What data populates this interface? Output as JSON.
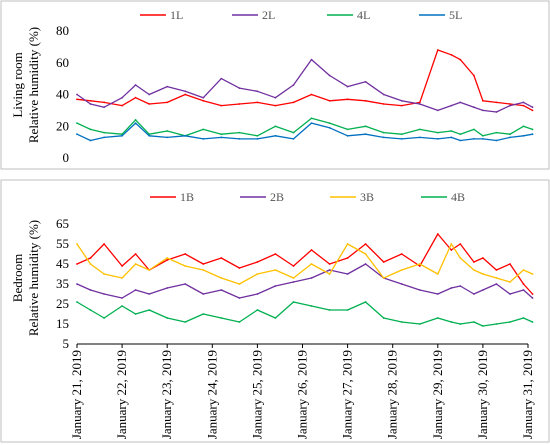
{
  "chart_data": [
    {
      "type": "line",
      "ylabel_line1": "Living room",
      "ylabel_line2": "Relative humidity (%)",
      "ylim": [
        0,
        80
      ],
      "yticks": [
        "0",
        "20",
        "40",
        "60",
        "80"
      ],
      "grid": false,
      "legend_position": "top",
      "x_range_days": [
        21,
        31
      ],
      "series": [
        {
          "name": "1L",
          "color": "#ff0000",
          "x": [
            21.0,
            21.3,
            21.6,
            22.0,
            22.3,
            22.6,
            23.0,
            23.4,
            23.8,
            24.2,
            24.6,
            25.0,
            25.4,
            25.8,
            26.2,
            26.6,
            27.0,
            27.4,
            27.8,
            28.2,
            28.6,
            29.0,
            29.3,
            29.5,
            29.8,
            30.0,
            30.3,
            30.6,
            30.9,
            31.1
          ],
          "y": [
            37,
            36,
            35,
            33,
            38,
            34,
            35,
            40,
            36,
            33,
            34,
            35,
            33,
            35,
            40,
            36,
            37,
            36,
            34,
            33,
            35,
            68,
            65,
            62,
            52,
            36,
            35,
            34,
            33,
            30
          ]
        },
        {
          "name": "2L",
          "color": "#7030a0",
          "x": [
            21.0,
            21.3,
            21.6,
            22.0,
            22.3,
            22.6,
            23.0,
            23.4,
            23.8,
            24.2,
            24.6,
            25.0,
            25.4,
            25.8,
            26.2,
            26.6,
            27.0,
            27.4,
            27.8,
            28.2,
            28.6,
            29.0,
            29.3,
            29.5,
            29.8,
            30.0,
            30.3,
            30.6,
            30.9,
            31.1
          ],
          "y": [
            40,
            34,
            32,
            38,
            46,
            40,
            45,
            42,
            38,
            50,
            44,
            42,
            38,
            46,
            62,
            52,
            45,
            48,
            40,
            36,
            34,
            30,
            33,
            35,
            32,
            30,
            29,
            33,
            35,
            32
          ]
        },
        {
          "name": "4L",
          "color": "#00b050",
          "x": [
            21.0,
            21.3,
            21.6,
            22.0,
            22.3,
            22.6,
            23.0,
            23.4,
            23.8,
            24.2,
            24.6,
            25.0,
            25.4,
            25.8,
            26.2,
            26.6,
            27.0,
            27.4,
            27.8,
            28.2,
            28.6,
            29.0,
            29.3,
            29.5,
            29.8,
            30.0,
            30.3,
            30.6,
            30.9,
            31.1
          ],
          "y": [
            22,
            18,
            16,
            15,
            24,
            15,
            17,
            14,
            18,
            15,
            16,
            14,
            20,
            16,
            25,
            22,
            18,
            20,
            16,
            15,
            18,
            16,
            17,
            15,
            18,
            14,
            16,
            15,
            20,
            18
          ]
        },
        {
          "name": "5L",
          "color": "#0070c0",
          "x": [
            21.0,
            21.3,
            21.6,
            22.0,
            22.3,
            22.6,
            23.0,
            23.4,
            23.8,
            24.2,
            24.6,
            25.0,
            25.4,
            25.8,
            26.2,
            26.6,
            27.0,
            27.4,
            27.8,
            28.2,
            28.6,
            29.0,
            29.3,
            29.5,
            29.8,
            30.0,
            30.3,
            30.6,
            30.9,
            31.1
          ],
          "y": [
            15,
            11,
            13,
            14,
            22,
            14,
            13,
            14,
            12,
            13,
            12,
            12,
            14,
            12,
            22,
            19,
            14,
            15,
            13,
            12,
            13,
            12,
            13,
            11,
            12,
            12,
            11,
            13,
            14,
            15
          ]
        }
      ]
    },
    {
      "type": "line",
      "ylabel_line1": "Bedroom",
      "ylabel_line2": "Relative humidity (%)",
      "ylim": [
        5,
        70
      ],
      "yticks": [
        "5",
        "15",
        "25",
        "35",
        "45",
        "55",
        "65"
      ],
      "grid": false,
      "legend_position": "top",
      "x_range_days": [
        21,
        31
      ],
      "series": [
        {
          "name": "1B",
          "color": "#ff0000",
          "x": [
            21.0,
            21.3,
            21.6,
            22.0,
            22.3,
            22.6,
            23.0,
            23.4,
            23.8,
            24.2,
            24.6,
            25.0,
            25.4,
            25.8,
            26.2,
            26.6,
            27.0,
            27.4,
            27.8,
            28.2,
            28.6,
            29.0,
            29.3,
            29.5,
            29.8,
            30.0,
            30.3,
            30.6,
            30.9,
            31.1
          ],
          "y": [
            45,
            48,
            55,
            44,
            50,
            42,
            47,
            50,
            45,
            48,
            43,
            46,
            50,
            44,
            52,
            45,
            48,
            55,
            46,
            50,
            44,
            60,
            52,
            55,
            46,
            48,
            42,
            45,
            35,
            30
          ]
        },
        {
          "name": "2B",
          "color": "#7030a0",
          "x": [
            21.0,
            21.3,
            21.6,
            22.0,
            22.3,
            22.6,
            23.0,
            23.4,
            23.8,
            24.2,
            24.6,
            25.0,
            25.4,
            25.8,
            26.2,
            26.6,
            27.0,
            27.4,
            27.8,
            28.2,
            28.6,
            29.0,
            29.3,
            29.5,
            29.8,
            30.0,
            30.3,
            30.6,
            30.9,
            31.1
          ],
          "y": [
            35,
            32,
            30,
            28,
            32,
            30,
            33,
            35,
            30,
            32,
            28,
            30,
            34,
            36,
            38,
            42,
            40,
            45,
            38,
            35,
            32,
            30,
            33,
            34,
            30,
            32,
            35,
            30,
            32,
            28
          ]
        },
        {
          "name": "3B",
          "color": "#ffc000",
          "x": [
            21.0,
            21.3,
            21.6,
            22.0,
            22.3,
            22.6,
            23.0,
            23.4,
            23.8,
            24.2,
            24.6,
            25.0,
            25.4,
            25.8,
            26.2,
            26.6,
            27.0,
            27.4,
            27.8,
            28.2,
            28.6,
            29.0,
            29.3,
            29.5,
            29.8,
            30.0,
            30.3,
            30.6,
            30.9,
            31.1
          ],
          "y": [
            55,
            45,
            40,
            38,
            45,
            42,
            48,
            44,
            42,
            38,
            35,
            40,
            42,
            38,
            45,
            40,
            55,
            50,
            38,
            42,
            45,
            40,
            55,
            48,
            42,
            40,
            38,
            36,
            42,
            40
          ]
        },
        {
          "name": "4B",
          "color": "#00b050",
          "x": [
            21.0,
            21.3,
            21.6,
            22.0,
            22.3,
            22.6,
            23.0,
            23.4,
            23.8,
            24.2,
            24.6,
            25.0,
            25.4,
            25.8,
            26.2,
            26.6,
            27.0,
            27.4,
            27.8,
            28.2,
            28.6,
            29.0,
            29.3,
            29.5,
            29.8,
            30.0,
            30.3,
            30.6,
            30.9,
            31.1
          ],
          "y": [
            26,
            22,
            18,
            24,
            20,
            22,
            18,
            16,
            20,
            18,
            16,
            22,
            18,
            26,
            24,
            22,
            22,
            26,
            18,
            16,
            15,
            18,
            16,
            15,
            16,
            14,
            15,
            16,
            18,
            16
          ]
        }
      ]
    }
  ],
  "x_axis": {
    "labels": [
      "January 21, 2019",
      "January 22, 2019",
      "January 23, 2019",
      "January 24, 2019",
      "January 25, 2019",
      "January 26, 2019",
      "January 27, 2019",
      "January 28, 2019",
      "January 29, 2019",
      "January 30, 2019",
      "January 31, 2019"
    ]
  }
}
